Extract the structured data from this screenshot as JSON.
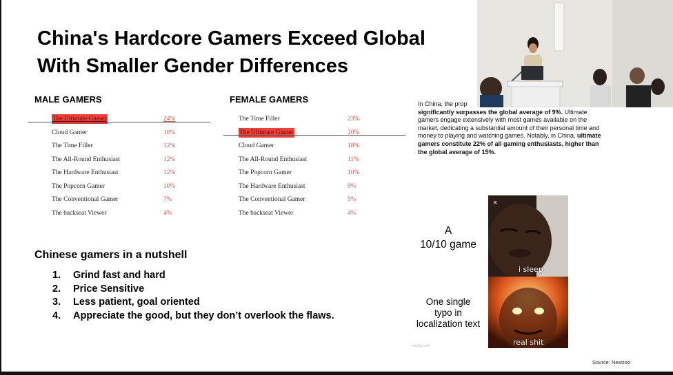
{
  "slide": {
    "title_line1": "China's Hardcore Gamers Exceed Global",
    "title_line2": "With Smaller Gender Differences",
    "male": {
      "heading": "MALE GAMERS",
      "rows": [
        {
          "name": "The Ultimate Gamer",
          "pct": "24%",
          "highlight": true
        },
        {
          "name": "Cloud Gamer",
          "pct": "18%",
          "highlight": false
        },
        {
          "name": "The Time Filler",
          "pct": "12%",
          "highlight": false
        },
        {
          "name": "The All-Round Enthusiast",
          "pct": "12%",
          "highlight": false
        },
        {
          "name": "The Hardware Enthusiast",
          "pct": "12%",
          "highlight": false
        },
        {
          "name": "The Popcorn Gamer",
          "pct": "10%",
          "highlight": false
        },
        {
          "name": "The Conventional Gamer",
          "pct": "7%",
          "highlight": false
        },
        {
          "name": "The backseat Viewer",
          "pct": "4%",
          "highlight": false
        }
      ]
    },
    "female": {
      "heading": "FEMALE GAMERS",
      "rows": [
        {
          "name": "The Time Filler",
          "pct": "23%",
          "highlight": false
        },
        {
          "name": "The Ultimate Gamer",
          "pct": "20%",
          "highlight": true
        },
        {
          "name": "Cloud Gamer",
          "pct": "18%",
          "highlight": false
        },
        {
          "name": "The All-Round Enthusiast",
          "pct": "11%",
          "highlight": false
        },
        {
          "name": "The Popcorn Gamer",
          "pct": "10%",
          "highlight": false
        },
        {
          "name": "The Hardware Enthusiast",
          "pct": "9%",
          "highlight": false
        },
        {
          "name": "The Conventional Gamer",
          "pct": "5%",
          "highlight": false
        },
        {
          "name": "The backseat Viewer",
          "pct": "4%",
          "highlight": false
        }
      ]
    },
    "nutshell": {
      "title": "Chinese gamers in a nutshell",
      "items": [
        {
          "num": "1.",
          "text": "Grind fast and hard"
        },
        {
          "num": "2.",
          "text": "Price Sensitive"
        },
        {
          "num": "3.",
          "text": "Less patient, goal oriented"
        },
        {
          "num": "4.",
          "text": "Appreciate the good, but they don’t overlook the flaws."
        }
      ]
    },
    "side_text": {
      "t1": "In China, the prop",
      "b1": "significantly surpasses the global average of 9%.",
      "t2": "Ultimate gamers engage extensively with most games available on the market, dedicating a substantial amount of their personal time and money to playing and watching games. Notably, in China,",
      "b2": "ultimate gamers constitute 22% of all gaming enthusiasts, higher than the global average of 15%."
    },
    "meme": {
      "top_line1": "A",
      "top_line2": "10/10 game",
      "bottom_line1": "One single",
      "bottom_line2": "typo in",
      "bottom_line3": "localization text",
      "caption_top": "i sleep",
      "caption_bottom": "real shit",
      "close": "×",
      "watermark": "imgflip.com"
    },
    "source": "Source: Newzoo"
  }
}
